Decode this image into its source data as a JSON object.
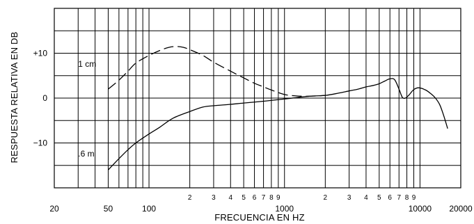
{
  "chart_data": {
    "type": "line",
    "title": "",
    "xlabel": "FRECUENCIA EN HZ",
    "ylabel": "RESPUESTA  RELATIVA  EN  DB",
    "x_scale": "log",
    "xlim": [
      20,
      20000
    ],
    "ylim": [
      -20,
      20
    ],
    "grid": true,
    "legend": "none",
    "y_ticks": [
      {
        "value": 10,
        "label": "+10"
      },
      {
        "value": 0,
        "label": "0"
      },
      {
        "value": -10,
        "label": "−10"
      }
    ],
    "x_major_ticks": [
      {
        "value": 20,
        "label": "20"
      },
      {
        "value": 50,
        "label": "50"
      },
      {
        "value": 100,
        "label": "100"
      },
      {
        "value": 1000,
        "label": "1000"
      },
      {
        "value": 10000,
        "label": "10000"
      },
      {
        "value": 20000,
        "label": "20000"
      }
    ],
    "x_minor_ticks": [
      {
        "value": 200,
        "label": "2"
      },
      {
        "value": 300,
        "label": "3"
      },
      {
        "value": 400,
        "label": "4"
      },
      {
        "value": 500,
        "label": "5"
      },
      {
        "value": 600,
        "label": "6"
      },
      {
        "value": 700,
        "label": "7"
      },
      {
        "value": 800,
        "label": "8"
      },
      {
        "value": 900,
        "label": "9"
      },
      {
        "value": 2000,
        "label": "2"
      },
      {
        "value": 3000,
        "label": "3"
      },
      {
        "value": 4000,
        "label": "4"
      },
      {
        "value": 5000,
        "label": "5"
      },
      {
        "value": 6000,
        "label": "6"
      },
      {
        "value": 7000,
        "label": "7"
      },
      {
        "value": 8000,
        "label": "8"
      },
      {
        "value": 9000,
        "label": "9"
      }
    ],
    "series": [
      {
        "name": "1 cm",
        "style": "dashed",
        "points": [
          [
            50,
            2
          ],
          [
            60,
            4
          ],
          [
            70,
            6
          ],
          [
            80,
            7.8
          ],
          [
            100,
            9.5
          ],
          [
            120,
            10.6
          ],
          [
            140,
            11.3
          ],
          [
            160,
            11.5
          ],
          [
            180,
            11.3
          ],
          [
            200,
            10.8
          ],
          [
            250,
            9.5
          ],
          [
            300,
            8
          ],
          [
            400,
            6
          ],
          [
            500,
            4.5
          ],
          [
            600,
            3.3
          ],
          [
            700,
            2.5
          ],
          [
            800,
            1.8
          ],
          [
            1000,
            0.8
          ],
          [
            1200,
            0.5
          ],
          [
            1500,
            0.4
          ],
          [
            2000,
            0.6
          ]
        ]
      },
      {
        "name": ".6 m",
        "style": "solid",
        "points": [
          [
            50,
            -16
          ],
          [
            60,
            -13.5
          ],
          [
            70,
            -11.5
          ],
          [
            80,
            -10
          ],
          [
            100,
            -8
          ],
          [
            120,
            -6.5
          ],
          [
            150,
            -4.5
          ],
          [
            200,
            -3
          ],
          [
            250,
            -2
          ],
          [
            300,
            -1.7
          ],
          [
            400,
            -1.4
          ],
          [
            500,
            -1.1
          ],
          [
            700,
            -0.7
          ],
          [
            1000,
            -0.2
          ],
          [
            1500,
            0.4
          ],
          [
            2000,
            0.6
          ],
          [
            2500,
            1.1
          ],
          [
            3000,
            1.6
          ],
          [
            3500,
            2
          ],
          [
            4000,
            2.5
          ],
          [
            4500,
            2.8
          ],
          [
            5000,
            3.2
          ],
          [
            5500,
            3.8
          ],
          [
            6000,
            4.3
          ],
          [
            6500,
            4.1
          ],
          [
            7000,
            2
          ],
          [
            7400,
            0.2
          ],
          [
            7800,
            0
          ],
          [
            8300,
            0.7
          ],
          [
            9000,
            1.9
          ],
          [
            9800,
            2.3
          ],
          [
            11000,
            1.8
          ],
          [
            12000,
            1
          ],
          [
            13000,
            0
          ],
          [
            14000,
            -1.5
          ],
          [
            15000,
            -4
          ],
          [
            16000,
            -6.8
          ]
        ]
      }
    ],
    "annotations": [
      {
        "text": "1 cm",
        "x": 30,
        "y": 7
      },
      {
        "text": ".6 m",
        "x": 30,
        "y": -13
      }
    ]
  }
}
